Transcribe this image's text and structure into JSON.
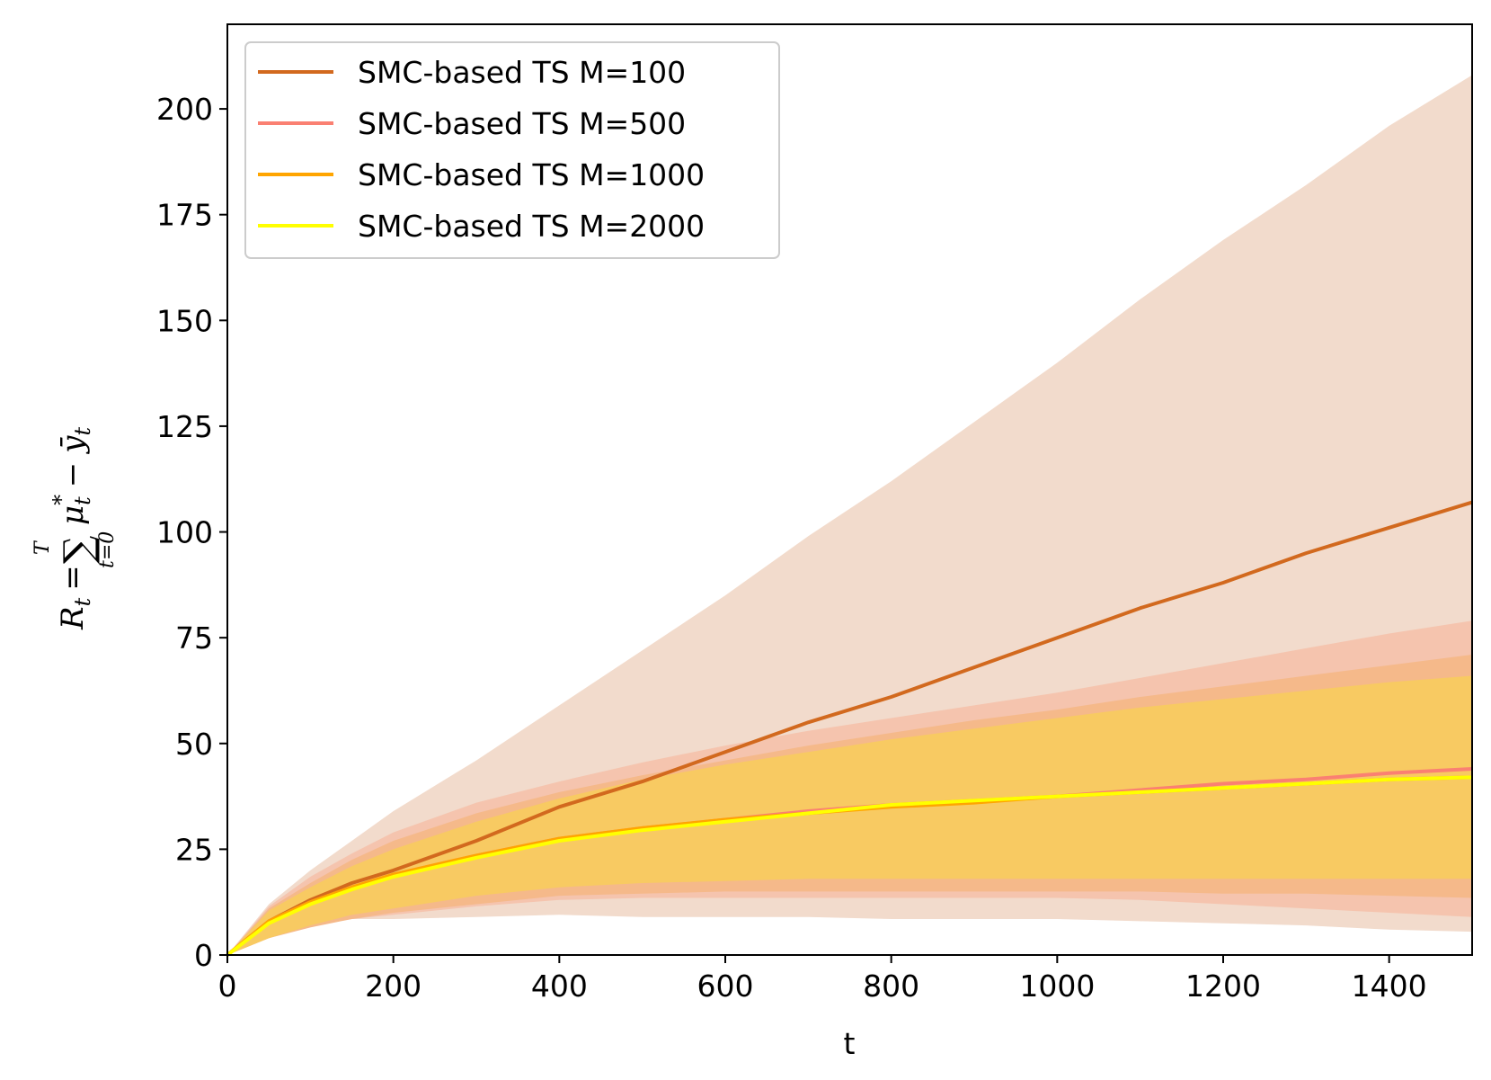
{
  "chart_data": {
    "type": "line",
    "title": "",
    "xlabel": "t",
    "ylabel": "R_t = Σ_{t=0}^{T} μ_t* − ȳ_t",
    "ylabel_parts": {
      "r": "R",
      "r_sub": "t",
      "eq": "=",
      "sigma": "∑",
      "sigma_top": "T",
      "sigma_bottom": "t=0",
      "mu": "μ",
      "mu_sub": "t",
      "mu_sup": "*",
      "minus": "−",
      "y": "ȳ",
      "y_sub": "t"
    },
    "xlim": [
      0,
      1500
    ],
    "ylim": [
      0,
      220
    ],
    "xticks": [
      0,
      200,
      400,
      600,
      800,
      1000,
      1200,
      1400
    ],
    "yticks": [
      0,
      25,
      50,
      75,
      100,
      125,
      150,
      175,
      200
    ],
    "grid": false,
    "legend_position": "top-left",
    "x": [
      0,
      50,
      100,
      150,
      200,
      300,
      400,
      500,
      600,
      700,
      800,
      900,
      1000,
      1100,
      1200,
      1300,
      1400,
      1500
    ],
    "series": [
      {
        "name": "SMC-based TS M=100",
        "color": "#d2691e",
        "band_color": "#f2dbcc",
        "mean": [
          0,
          8,
          13,
          17,
          20,
          27,
          35,
          41,
          48,
          55,
          61,
          68,
          75,
          82,
          88,
          95,
          101,
          107
        ],
        "lower": [
          0,
          4.5,
          7.5,
          8.5,
          8.5,
          9,
          9.5,
          9,
          9,
          9,
          8.5,
          8.5,
          8.5,
          8,
          7.5,
          7,
          6,
          5.5
        ],
        "upper": [
          0,
          12,
          20,
          27,
          34,
          46,
          59,
          72,
          85,
          99,
          112,
          126,
          140,
          155,
          169,
          182,
          196,
          208
        ]
      },
      {
        "name": "SMC-based TS M=500",
        "color": "#fa8072",
        "band_color": "#f5c4ae",
        "mean": [
          0,
          8,
          12.5,
          16,
          19,
          23.5,
          27.5,
          30,
          32,
          34,
          35.5,
          36.5,
          37.5,
          39,
          40.5,
          41.5,
          43,
          44
        ],
        "lower": [
          0,
          4,
          7,
          8.5,
          9.5,
          11.5,
          13,
          13.5,
          13.5,
          13.5,
          13.5,
          13.5,
          13.5,
          13,
          12,
          11,
          10,
          9
        ],
        "upper": [
          0,
          11.5,
          18.5,
          24,
          29,
          36,
          41,
          45.5,
          49.5,
          53,
          56,
          59,
          62,
          65.5,
          69,
          72.5,
          76,
          79
        ]
      },
      {
        "name": "SMC-based TS M=1000",
        "color": "#ffa500",
        "band_color": "#f5b98a",
        "mean": [
          0,
          8,
          12.5,
          16,
          19,
          23.5,
          27.5,
          30,
          32,
          33.5,
          35,
          36,
          37.5,
          38.5,
          39.5,
          40.5,
          41.5,
          42
        ],
        "lower": [
          0,
          4,
          6.5,
          8.5,
          10,
          12,
          14,
          14.5,
          15,
          15,
          15,
          15,
          15,
          15,
          14.5,
          14.5,
          14,
          13.5
        ],
        "upper": [
          0,
          11,
          17,
          22.5,
          27,
          33.5,
          38.5,
          42.5,
          46,
          49.5,
          52.5,
          55.5,
          58,
          61,
          63.5,
          66,
          68.5,
          71
        ]
      },
      {
        "name": "SMC-based TS M=2000",
        "color": "#ffff00",
        "band_color": "#f8ca62",
        "mean": [
          0,
          7.5,
          12,
          15.5,
          18.5,
          23,
          27,
          29.5,
          31.5,
          33.5,
          35.5,
          36.5,
          37.5,
          38.5,
          39.5,
          40.5,
          41.5,
          42
        ],
        "lower": [
          0,
          4,
          7,
          9.5,
          11,
          14,
          16,
          17,
          17.5,
          18,
          18,
          18,
          18,
          18,
          18,
          18,
          18,
          18
        ],
        "upper": [
          0,
          10.5,
          16,
          21,
          25,
          31.5,
          37,
          41.5,
          45,
          48,
          51,
          53.5,
          56,
          58.5,
          60.5,
          62.5,
          64.5,
          66
        ]
      }
    ]
  }
}
